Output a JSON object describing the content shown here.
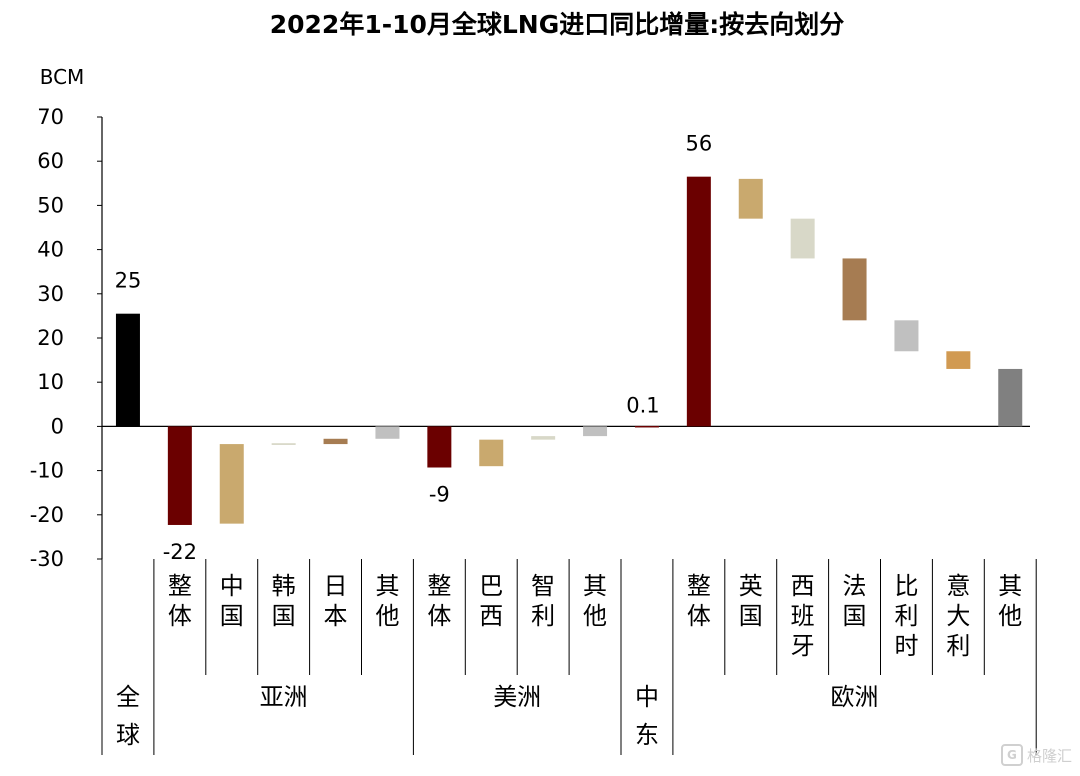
{
  "chart_data": {
    "type": "bar",
    "title": "2022年1-10月全球LNG进口同比增量:按去向划分",
    "ylabel": "BCM",
    "ylim": [
      -30,
      70
    ],
    "yticks": [
      "70",
      "60",
      "50",
      "40",
      "30",
      "20",
      "10",
      "0",
      "-10",
      "-20",
      "-30"
    ],
    "bars": [
      {
        "label": "",
        "group": "全球",
        "bottom": 0,
        "top": 25.5,
        "color": "#000000",
        "value_label": "25"
      },
      {
        "label": "整体",
        "group": "亚洲",
        "bottom": -22.3,
        "top": 0,
        "color": "#6b0000",
        "value_label": "-22"
      },
      {
        "label": "中国",
        "group": "亚洲",
        "bottom": -22.0,
        "top": -4.0,
        "color": "#c9a96e",
        "value_label": ""
      },
      {
        "label": "韩国",
        "group": "亚洲",
        "bottom": -4.2,
        "top": -3.8,
        "color": "#d8d8c8",
        "value_label": ""
      },
      {
        "label": "日本",
        "group": "亚洲",
        "bottom": -4.0,
        "top": -2.8,
        "color": "#a67c52",
        "value_label": ""
      },
      {
        "label": "其他",
        "group": "亚洲",
        "bottom": -2.8,
        "top": 0,
        "color": "#c0c0c0",
        "value_label": ""
      },
      {
        "label": "整体",
        "group": "美洲",
        "bottom": -9.3,
        "top": 0,
        "color": "#6b0000",
        "value_label": "-9"
      },
      {
        "label": "巴西",
        "group": "美洲",
        "bottom": -9.0,
        "top": -3.0,
        "color": "#c9a96e",
        "value_label": ""
      },
      {
        "label": "智利",
        "group": "美洲",
        "bottom": -3.0,
        "top": -2.2,
        "color": "#d8d8c8",
        "value_label": ""
      },
      {
        "label": "其他",
        "group": "美洲",
        "bottom": -2.2,
        "top": 0,
        "color": "#c0c0c0",
        "value_label": ""
      },
      {
        "label": "",
        "group": "中东",
        "bottom": 0,
        "top": 0.1,
        "color": "#6b0000",
        "value_label": "0.1"
      },
      {
        "label": "整体",
        "group": "欧洲",
        "bottom": 0,
        "top": 56.5,
        "color": "#6b0000",
        "value_label": "56"
      },
      {
        "label": "英国",
        "group": "欧洲",
        "bottom": 47.0,
        "top": 56.0,
        "color": "#c9a96e",
        "value_label": ""
      },
      {
        "label": "西班牙",
        "group": "欧洲",
        "bottom": 38.0,
        "top": 47.0,
        "color": "#d8d8c8",
        "value_label": ""
      },
      {
        "label": "法国",
        "group": "欧洲",
        "bottom": 24.0,
        "top": 38.0,
        "color": "#a67c52",
        "value_label": ""
      },
      {
        "label": "比利时",
        "group": "欧洲",
        "bottom": 17.0,
        "top": 24.0,
        "color": "#c0c0c0",
        "value_label": ""
      },
      {
        "label": "意大利",
        "group": "欧洲",
        "bottom": 13.0,
        "top": 17.0,
        "color": "#d19a52",
        "value_label": ""
      },
      {
        "label": "其他",
        "group": "欧洲",
        "bottom": 0,
        "top": 13.0,
        "color": "#808080",
        "value_label": ""
      }
    ],
    "groups": [
      "全球",
      "亚洲",
      "美洲",
      "中东",
      "欧洲"
    ],
    "grid": false,
    "legend": "none"
  },
  "watermark": {
    "icon": "watermark-logo-icon",
    "icon_glyph": "G",
    "text": "格隆汇"
  }
}
